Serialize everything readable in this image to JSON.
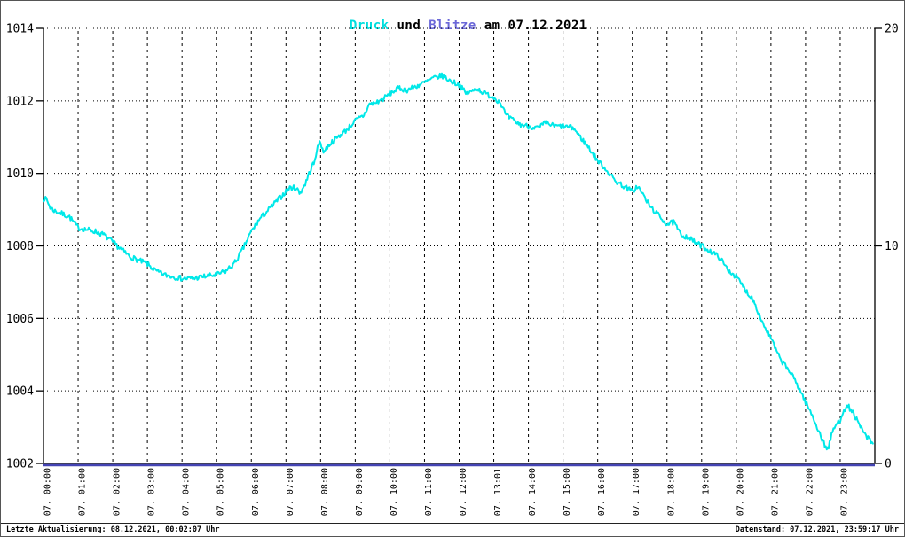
{
  "title": {
    "druck": "Druck",
    "und": " und ",
    "blitze": "Blitze",
    "suffix": " am 07.12.2021"
  },
  "footer": {
    "left": "Letzte Aktualisierung: 08.12.2021, 00:02:07 Uhr",
    "right": "Datenstand: 07.12.2021, 23:59:17 Uhr"
  },
  "colors": {
    "druck_title": "#00dede",
    "blitze_title": "#6b68d8",
    "druck_line": "#00e8e8",
    "blitze_line": "#4444b4",
    "grid": "#000000",
    "text": "#000000"
  },
  "chart_data": {
    "type": "line",
    "title": "Druck und Blitze am 07.12.2021",
    "x_range_hours": [
      0,
      24
    ],
    "x_tick_labels": [
      "07. 00:00",
      "07. 01:00",
      "07. 02:00",
      "07. 03:00",
      "07. 04:00",
      "07. 05:00",
      "07. 06:00",
      "07. 07:00",
      "07. 08:00",
      "07. 09:00",
      "07. 10:00",
      "07. 11:00",
      "07. 12:00",
      "07. 13:01",
      "07. 14:00",
      "07. 15:00",
      "07. 16:00",
      "07. 17:00",
      "07. 18:00",
      "07. 19:00",
      "07. 20:00",
      "07. 21:00",
      "07. 22:00",
      "07. 23:00"
    ],
    "y_left": {
      "series_name": "Druck",
      "min": 1002,
      "max": 1014,
      "tick_step": 2,
      "tick_labels": [
        "1014",
        "1012",
        "1010",
        "1008",
        "1006",
        "1004",
        "1002"
      ]
    },
    "y_right": {
      "series_name": "Blitze",
      "min": 0,
      "max": 20,
      "tick_values": [
        20,
        10,
        0
      ],
      "tick_labels": [
        "20",
        "10",
        "0"
      ]
    },
    "grid": {
      "horizontal_style": "dotted",
      "vertical_style": "dashed",
      "vertical_every_hours": 1
    },
    "legend_position": "none",
    "render_noise_amplitude_hpa": 0.075,
    "series": [
      {
        "name": "Druck",
        "axis": "left",
        "color": "#00e8e8",
        "points_hour_hpa": [
          [
            0,
            1009.25
          ],
          [
            0.08,
            1009.3
          ],
          [
            0.2,
            1009.05
          ],
          [
            0.35,
            1008.95
          ],
          [
            0.5,
            1008.9
          ],
          [
            0.75,
            1008.8
          ],
          [
            1,
            1008.5
          ],
          [
            1.25,
            1008.45
          ],
          [
            1.5,
            1008.4
          ],
          [
            1.75,
            1008.3
          ],
          [
            2,
            1008.1
          ],
          [
            2.25,
            1007.9
          ],
          [
            2.5,
            1007.7
          ],
          [
            2.75,
            1007.6
          ],
          [
            3,
            1007.5
          ],
          [
            3.25,
            1007.3
          ],
          [
            3.5,
            1007.2
          ],
          [
            3.75,
            1007.15
          ],
          [
            4,
            1007.1
          ],
          [
            4.3,
            1007.1
          ],
          [
            4.6,
            1007.15
          ],
          [
            5,
            1007.2
          ],
          [
            5.25,
            1007.3
          ],
          [
            5.5,
            1007.5
          ],
          [
            5.75,
            1007.9
          ],
          [
            6,
            1008.4
          ],
          [
            6.25,
            1008.75
          ],
          [
            6.5,
            1009.0
          ],
          [
            6.75,
            1009.25
          ],
          [
            7,
            1009.5
          ],
          [
            7.1,
            1009.6
          ],
          [
            7.3,
            1009.6
          ],
          [
            7.4,
            1009.45
          ],
          [
            7.55,
            1009.7
          ],
          [
            7.75,
            1010.2
          ],
          [
            7.85,
            1010.35
          ],
          [
            7.92,
            1010.85
          ],
          [
            8,
            1010.8
          ],
          [
            8.1,
            1010.6
          ],
          [
            8.25,
            1010.8
          ],
          [
            8.5,
            1011.0
          ],
          [
            8.75,
            1011.2
          ],
          [
            9,
            1011.45
          ],
          [
            9.25,
            1011.6
          ],
          [
            9.4,
            1011.9
          ],
          [
            9.6,
            1011.95
          ],
          [
            9.8,
            1012.05
          ],
          [
            10,
            1012.2
          ],
          [
            10.25,
            1012.35
          ],
          [
            10.5,
            1012.3
          ],
          [
            10.75,
            1012.4
          ],
          [
            11,
            1012.5
          ],
          [
            11.2,
            1012.6
          ],
          [
            11.5,
            1012.7
          ],
          [
            11.75,
            1012.55
          ],
          [
            12,
            1012.45
          ],
          [
            12.2,
            1012.2
          ],
          [
            12.35,
            1012.25
          ],
          [
            12.5,
            1012.35
          ],
          [
            12.75,
            1012.2
          ],
          [
            13,
            1012.1
          ],
          [
            13.2,
            1011.95
          ],
          [
            13.35,
            1011.6
          ],
          [
            13.5,
            1011.5
          ],
          [
            13.75,
            1011.35
          ],
          [
            14,
            1011.3
          ],
          [
            14.3,
            1011.25
          ],
          [
            14.5,
            1011.4
          ],
          [
            14.75,
            1011.3
          ],
          [
            15,
            1011.3
          ],
          [
            15.3,
            1011.25
          ],
          [
            15.5,
            1011.0
          ],
          [
            15.75,
            1010.7
          ],
          [
            16,
            1010.35
          ],
          [
            16.25,
            1010.1
          ],
          [
            16.5,
            1009.8
          ],
          [
            16.75,
            1009.65
          ],
          [
            17,
            1009.5
          ],
          [
            17.15,
            1009.65
          ],
          [
            17.35,
            1009.35
          ],
          [
            17.5,
            1009.1
          ],
          [
            17.75,
            1008.85
          ],
          [
            18,
            1008.6
          ],
          [
            18.2,
            1008.65
          ],
          [
            18.4,
            1008.3
          ],
          [
            18.6,
            1008.25
          ],
          [
            18.8,
            1008.1
          ],
          [
            19,
            1008.0
          ],
          [
            19.25,
            1007.85
          ],
          [
            19.5,
            1007.7
          ],
          [
            19.75,
            1007.35
          ],
          [
            20,
            1007.15
          ],
          [
            20.25,
            1006.8
          ],
          [
            20.5,
            1006.5
          ],
          [
            20.75,
            1005.9
          ],
          [
            21,
            1005.45
          ],
          [
            21.25,
            1004.9
          ],
          [
            21.5,
            1004.6
          ],
          [
            21.75,
            1004.2
          ],
          [
            22,
            1003.7
          ],
          [
            22.25,
            1003.2
          ],
          [
            22.4,
            1002.85
          ],
          [
            22.55,
            1002.5
          ],
          [
            22.65,
            1002.4
          ],
          [
            22.8,
            1002.95
          ],
          [
            23,
            1003.2
          ],
          [
            23.1,
            1003.5
          ],
          [
            23.25,
            1003.55
          ],
          [
            23.4,
            1003.35
          ],
          [
            23.55,
            1003.05
          ],
          [
            23.75,
            1002.75
          ],
          [
            23.97,
            1002.5
          ]
        ]
      },
      {
        "name": "Blitze",
        "axis": "right",
        "color": "#4444b4",
        "constant_value": 0
      }
    ]
  }
}
